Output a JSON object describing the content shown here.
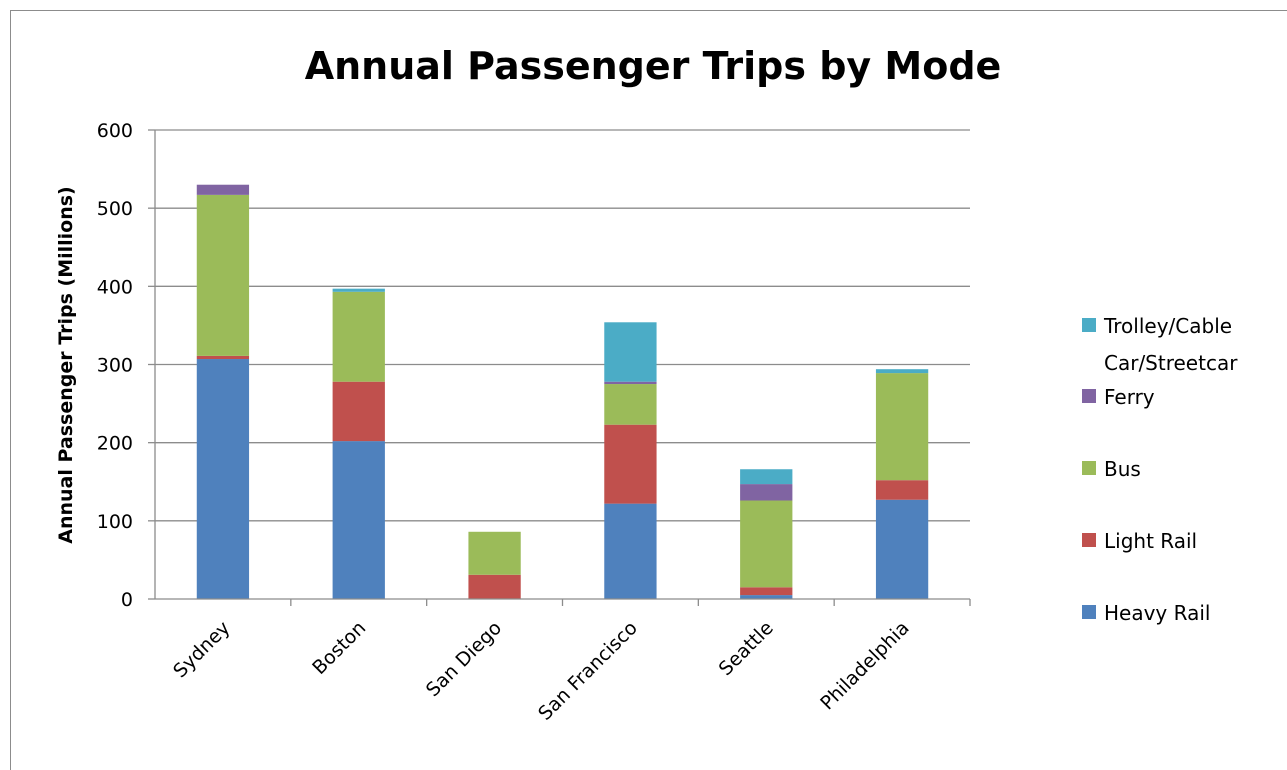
{
  "chart_data": {
    "type": "bar",
    "stacked": true,
    "title": "Annual Passenger Trips by Mode",
    "xlabel": "",
    "ylabel": "Annual Passenger Trips (Millions)",
    "ylim": [
      0,
      600
    ],
    "yticks": [
      "0",
      "100",
      "200",
      "300",
      "400",
      "500",
      "600"
    ],
    "grid": true,
    "legend_position": "right",
    "categories": [
      "Sydney",
      "Boston",
      "San Diego",
      "San Francisco",
      "Seattle",
      "Philadelphia"
    ],
    "series": [
      {
        "name": "Heavy Rail",
        "color": "#4f81bd",
        "values": [
          307,
          202,
          0,
          122,
          5,
          127
        ]
      },
      {
        "name": "Light Rail",
        "color": "#c0504d",
        "values": [
          4,
          76,
          31,
          101,
          10,
          25
        ]
      },
      {
        "name": "Bus",
        "color": "#9bbb59",
        "values": [
          206,
          115,
          55,
          52,
          111,
          137
        ]
      },
      {
        "name": "Ferry",
        "color": "#8064a2",
        "values": [
          13,
          0,
          0,
          3,
          21,
          0
        ]
      },
      {
        "name": "Trolley/Cable Car/Streetcar",
        "color": "#4bacc6",
        "values": [
          0,
          4,
          0,
          76,
          19,
          5
        ]
      }
    ],
    "legend_labels": [
      {
        "series": 4,
        "lines": [
          "Trolley/Cable",
          "Car/Streetcar"
        ]
      },
      {
        "series": 3,
        "lines": [
          "Ferry"
        ]
      },
      {
        "series": 2,
        "lines": [
          "Bus"
        ]
      },
      {
        "series": 1,
        "lines": [
          "Light Rail"
        ]
      },
      {
        "series": 0,
        "lines": [
          "Heavy Rail"
        ]
      }
    ]
  }
}
